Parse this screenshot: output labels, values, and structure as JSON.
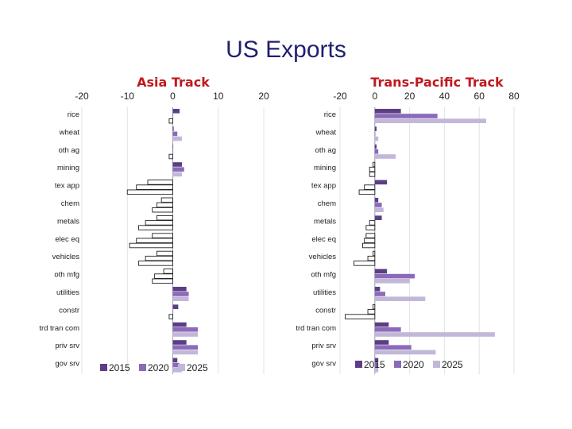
{
  "title": "US Exports",
  "colors": {
    "2015": "#5b3e85",
    "2020": "#8a6ab9",
    "2025": "#c2b7d9",
    "title_red": "#c0191f",
    "title_blue": "#1f1f6e"
  },
  "chart_data": [
    {
      "type": "bar",
      "orientation": "horizontal",
      "title": "Asia Track",
      "xlim": [
        -20,
        20
      ],
      "xticks": [
        "-20",
        "-10",
        "0",
        "10",
        "20"
      ],
      "categories": [
        "rice",
        "wheat",
        "oth ag",
        "mining",
        "tex app",
        "chem",
        "metals",
        "elec eq",
        "vehicles",
        "oth mfg",
        "utilities",
        "constr",
        "trd tran com",
        "priv srv",
        "gov srv"
      ],
      "series": [
        {
          "name": "2015",
          "values": [
            1.5,
            0.2,
            0,
            2,
            -5.5,
            -2.5,
            -3.5,
            -4.5,
            -3.5,
            -2,
            3,
            1.2,
            3,
            3,
            1
          ]
        },
        {
          "name": "2020",
          "values": [
            0,
            1,
            0,
            2.5,
            -8,
            -3.5,
            -6,
            -8,
            -6,
            -4,
            3.5,
            0,
            5.5,
            5.5,
            1.5
          ]
        },
        {
          "name": "2025",
          "values": [
            -0.8,
            2,
            -0.8,
            2,
            -10,
            -4.5,
            -7.5,
            -9.5,
            -7.5,
            -4.5,
            3.5,
            -0.8,
            5.5,
            5.5,
            2
          ]
        }
      ],
      "legend": "bottom"
    },
    {
      "type": "bar",
      "orientation": "horizontal",
      "title": "Trans-Pacific Track",
      "xlim": [
        -20,
        80
      ],
      "xticks": [
        "-20",
        "0",
        "20",
        "40",
        "60",
        "80"
      ],
      "categories": [
        "rice",
        "wheat",
        "oth ag",
        "mining",
        "tex app",
        "chem",
        "metals",
        "elec eq",
        "vehicles",
        "oth mfg",
        "utilities",
        "constr",
        "trd tran com",
        "priv srv",
        "gov srv"
      ],
      "series": [
        {
          "name": "2015",
          "values": [
            15,
            1,
            1,
            -1,
            7,
            2,
            4,
            -5,
            -1,
            7,
            3,
            -1,
            8,
            8,
            2
          ]
        },
        {
          "name": "2020",
          "values": [
            36,
            0,
            2,
            -3,
            -6,
            4,
            -3,
            -6,
            -4,
            23,
            6,
            -4,
            15,
            21,
            2
          ]
        },
        {
          "name": "2025",
          "values": [
            64,
            2,
            12,
            -3,
            -9,
            5,
            -5,
            -7,
            -12,
            20,
            29,
            -17,
            69,
            35,
            2
          ]
        }
      ],
      "legend": "bottom"
    }
  ]
}
